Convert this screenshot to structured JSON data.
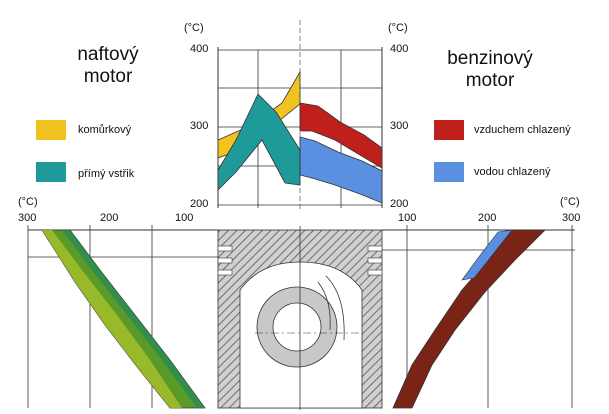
{
  "titles": {
    "diesel": [
      "naftový",
      "motor"
    ],
    "petrol": [
      "benzinový",
      "motor"
    ]
  },
  "legend": {
    "diesel": [
      {
        "label": "komůrkový",
        "color": "#f0c320"
      },
      {
        "label": "přímý vstřik",
        "color": "#1f9a9a"
      }
    ],
    "petrol": [
      {
        "label": "vzduchem chlazený",
        "color": "#c0201c"
      },
      {
        "label": "vodou chlazený",
        "color": "#5b8fe0"
      }
    ]
  },
  "units": {
    "top_left": "(°C)",
    "top_right": "(°C)",
    "side_left": "(°C)",
    "side_right": "(°C)"
  },
  "top_axis": {
    "left_ticks": [
      "400",
      "300",
      "200"
    ],
    "right_ticks": [
      "400",
      "300",
      "200"
    ]
  },
  "side_axis": {
    "left_ticks": [
      "300",
      "200",
      "100"
    ],
    "right_ticks": [
      "100",
      "200",
      "300"
    ]
  },
  "colors": {
    "diesel_prechamber": "#f0c320",
    "diesel_direct": "#1f9a9a",
    "diesel_side": "#5a9a2a",
    "petrol_air": "#c0201c",
    "petrol_water": "#5b8fe0",
    "petrol_side": "#7a2418",
    "piston_metal": "#c8c8c8",
    "hatch": "#666666"
  }
}
